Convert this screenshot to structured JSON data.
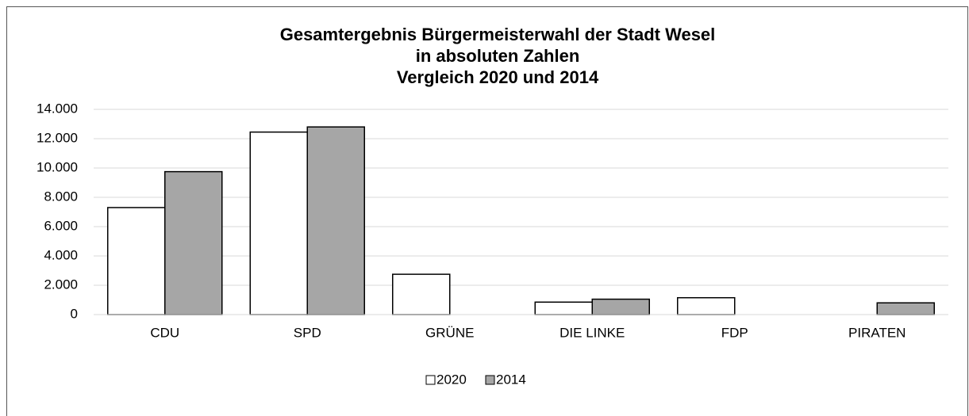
{
  "chart_data": {
    "type": "bar",
    "title": [
      "Gesamtergebnis Bürgermeisterwahl der Stadt Wesel",
      "in absoluten Zahlen",
      "Vergleich 2020 und 2014"
    ],
    "categories": [
      "CDU",
      "SPD",
      "GRÜNE",
      "DIE LINKE",
      "FDP",
      "PIRATEN"
    ],
    "series": [
      {
        "name": "2020",
        "color": "#ffffff",
        "values": [
          7300,
          12450,
          2750,
          850,
          1150,
          null
        ]
      },
      {
        "name": "2014",
        "color": "#a6a6a6",
        "values": [
          9750,
          12800,
          null,
          1050,
          null,
          800
        ]
      }
    ],
    "ylim": [
      0,
      14000
    ],
    "yticks": [
      0,
      {
        "value": 2000,
        "label": "2.000"
      },
      {
        "value": 4000,
        "label": "4.000"
      },
      {
        "value": 6000,
        "label": "6.000"
      },
      {
        "value": 8000,
        "label": "8.000"
      },
      {
        "value": 10000,
        "label": "10.000"
      },
      {
        "value": 12000,
        "label": "12.000"
      },
      {
        "value": 14000,
        "label": "14.000"
      }
    ],
    "grid": true,
    "legend": "bottom"
  }
}
